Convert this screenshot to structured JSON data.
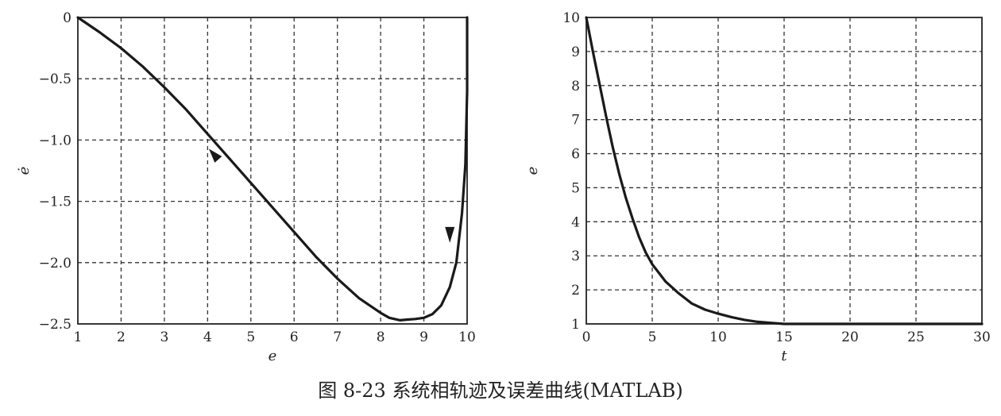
{
  "caption": "图 8-23   系统相轨迹及误差曲线(MATLAB)",
  "chart_data": [
    {
      "type": "line",
      "xlabel": "e",
      "ylabel": "ė",
      "xlim": [
        1,
        10
      ],
      "ylim": [
        -2.5,
        0
      ],
      "xticks": [
        1,
        2,
        3,
        4,
        5,
        6,
        7,
        8,
        9,
        10
      ],
      "yticks": [
        0,
        -0.5,
        -1.0,
        -1.5,
        -2.0,
        -2.5
      ],
      "ytick_labels": [
        "0",
        "−0.5",
        "−1.0",
        "−1.5",
        "−2.0",
        "−2.5"
      ],
      "grid": true,
      "series": [
        {
          "x": [
            10,
            10,
            9.96,
            9.88,
            9.75,
            9.6,
            9.4,
            9.2,
            9.0,
            8.8,
            8.6,
            8.45,
            8.2,
            8.0,
            7.5,
            7.0,
            6.5,
            6.0,
            5.5,
            5.0,
            4.5,
            4.0,
            3.5,
            3.0,
            2.5,
            2.0,
            1.5,
            1.0
          ],
          "y": [
            0,
            -0.6,
            -1.2,
            -1.6,
            -2.0,
            -2.2,
            -2.35,
            -2.42,
            -2.45,
            -2.46,
            -2.465,
            -2.47,
            -2.45,
            -2.41,
            -2.29,
            -2.13,
            -1.95,
            -1.75,
            -1.55,
            -1.35,
            -1.15,
            -0.95,
            -0.75,
            -0.57,
            -0.4,
            -0.25,
            -0.12,
            0
          ]
        }
      ],
      "arrows": [
        {
          "x": 9.6,
          "y": -1.8,
          "direction": "down"
        },
        {
          "x": 4.15,
          "y": -1.12,
          "direction": "up-left"
        }
      ]
    },
    {
      "type": "line",
      "xlabel": "t",
      "ylabel": "e",
      "xlim": [
        0,
        30
      ],
      "ylim": [
        1,
        10
      ],
      "xticks": [
        0,
        5,
        10,
        15,
        20,
        25,
        30
      ],
      "yticks": [
        1,
        2,
        3,
        4,
        5,
        6,
        7,
        8,
        9,
        10
      ],
      "grid": true,
      "series": [
        {
          "x": [
            0,
            0.5,
            1,
            1.5,
            2,
            2.5,
            3,
            3.5,
            4,
            4.5,
            5,
            6,
            7,
            8,
            9,
            10,
            11,
            12,
            13,
            14,
            15,
            17,
            20,
            25,
            30
          ],
          "y": [
            10,
            9.0,
            8.05,
            7.1,
            6.2,
            5.4,
            4.7,
            4.1,
            3.55,
            3.1,
            2.75,
            2.25,
            1.9,
            1.6,
            1.42,
            1.3,
            1.2,
            1.12,
            1.06,
            1.03,
            1.0,
            1.0,
            1.0,
            1.0,
            1.0
          ]
        }
      ]
    }
  ]
}
